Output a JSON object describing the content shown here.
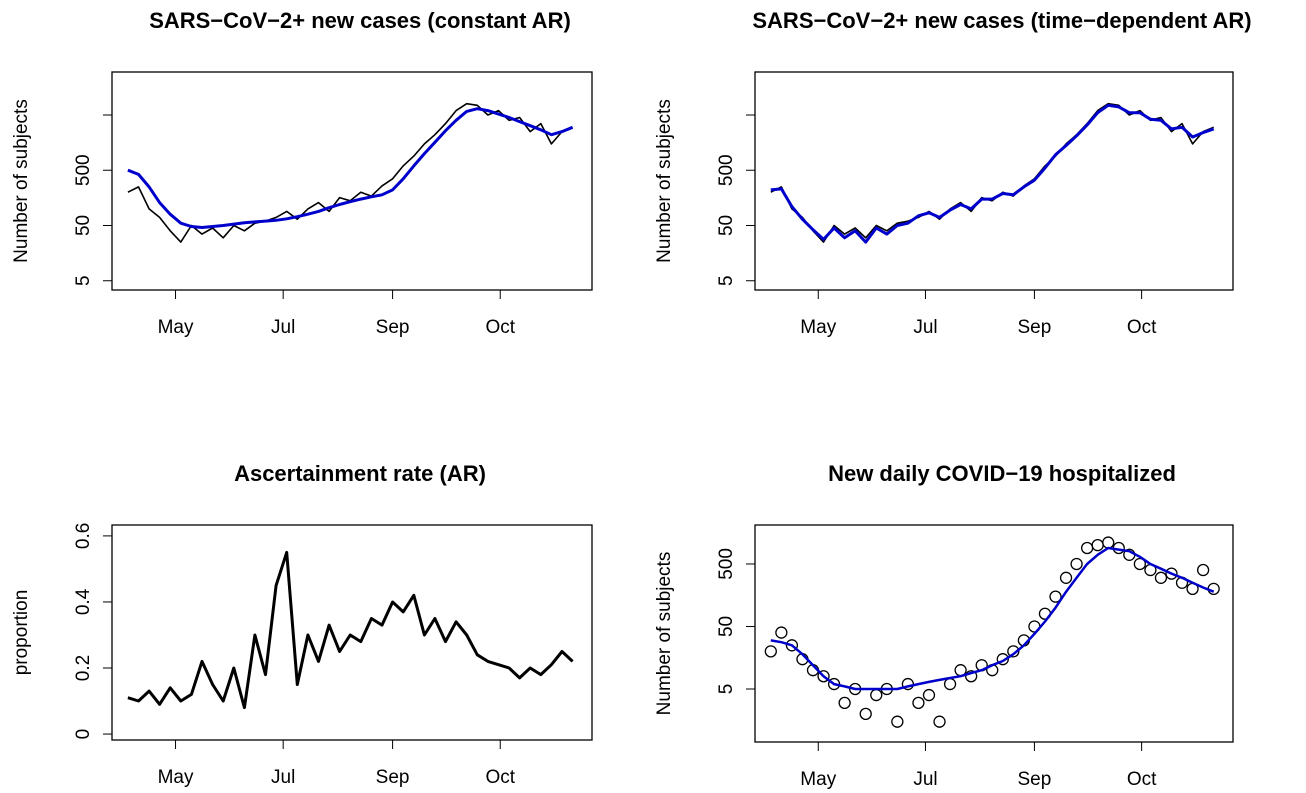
{
  "chart_data": [
    {
      "type": "line",
      "title": "SARS−CoV−2+ new cases (constant AR)",
      "y_label": "Number of subjects",
      "log_y": true,
      "x": [
        94,
        100,
        106,
        112,
        118,
        124,
        130,
        136,
        142,
        148,
        154,
        160,
        166,
        172,
        178,
        184,
        190,
        196,
        202,
        208,
        214,
        220,
        226,
        232,
        238,
        244,
        250,
        256,
        262,
        268,
        274,
        280,
        286,
        292,
        298,
        304,
        310,
        316,
        322,
        328,
        334,
        340,
        346
      ],
      "xlim": [
        85,
        357
      ],
      "xticks": [
        {
          "value": 121,
          "label": "May"
        },
        {
          "value": 182,
          "label": "Jul"
        },
        {
          "value": 244,
          "label": "Sep"
        },
        {
          "value": 305,
          "label": "Oct"
        }
      ],
      "ylim": [
        3.4,
        30000
      ],
      "yticks": [
        5,
        50,
        500,
        {
          "value": 5000,
          "label": null
        }
      ],
      "series": [
        {
          "color": "#000000",
          "width": 1.6,
          "values": [
            200,
            250,
            100,
            70,
            40,
            25,
            50,
            35,
            45,
            30,
            50,
            40,
            55,
            60,
            70,
            90,
            65,
            100,
            130,
            90,
            160,
            140,
            200,
            170,
            260,
            350,
            600,
            900,
            1500,
            2200,
            3500,
            6000,
            8000,
            7500,
            5000,
            6000,
            4000,
            4500,
            2500,
            3500,
            1500,
            2500,
            3000
          ]
        },
        {
          "color": "#0000cc",
          "width": 3,
          "values": [
            500,
            420,
            250,
            130,
            80,
            55,
            48,
            46,
            48,
            50,
            53,
            56,
            58,
            60,
            62,
            66,
            72,
            80,
            90,
            105,
            120,
            135,
            150,
            165,
            180,
            220,
            350,
            600,
            1000,
            1600,
            2600,
            4000,
            5800,
            6500,
            6000,
            5200,
            4500,
            3800,
            3200,
            2700,
            2200,
            2500,
            3000
          ]
        }
      ]
    },
    {
      "type": "line",
      "title": "SARS−CoV−2+ new cases (time−dependent AR)",
      "y_label": "Number of subjects",
      "log_y": true,
      "x": [
        94,
        100,
        106,
        112,
        118,
        124,
        130,
        136,
        142,
        148,
        154,
        160,
        166,
        172,
        178,
        184,
        190,
        196,
        202,
        208,
        214,
        220,
        226,
        232,
        238,
        244,
        250,
        256,
        262,
        268,
        274,
        280,
        286,
        292,
        298,
        304,
        310,
        316,
        322,
        328,
        334,
        340,
        346
      ],
      "xlim": [
        85,
        357
      ],
      "xticks": [
        {
          "value": 121,
          "label": "May"
        },
        {
          "value": 182,
          "label": "Jul"
        },
        {
          "value": 244,
          "label": "Sep"
        },
        {
          "value": 305,
          "label": "Oct"
        }
      ],
      "ylim": [
        3.4,
        30000
      ],
      "yticks": [
        5,
        50,
        500,
        {
          "value": 5000,
          "label": null
        }
      ],
      "series": [
        {
          "color": "#000000",
          "width": 1.6,
          "values": [
            200,
            250,
            100,
            70,
            40,
            25,
            50,
            35,
            45,
            30,
            50,
            40,
            55,
            60,
            70,
            90,
            65,
            100,
            130,
            90,
            160,
            140,
            200,
            170,
            260,
            350,
            600,
            900,
            1500,
            2200,
            3500,
            6000,
            8000,
            7500,
            5000,
            6000,
            4000,
            4500,
            2500,
            3500,
            1500,
            2500,
            3000
          ]
        },
        {
          "color": "#0000cc",
          "width": 3,
          "values": [
            220,
            230,
            110,
            65,
            42,
            28,
            45,
            30,
            40,
            25,
            45,
            35,
            50,
            55,
            75,
            85,
            70,
            95,
            120,
            100,
            150,
            150,
            190,
            180,
            250,
            330,
            550,
            950,
            1400,
            2100,
            3300,
            5500,
            7500,
            7000,
            5500,
            5500,
            4200,
            4000,
            2800,
            3000,
            2000,
            2400,
            2800
          ]
        }
      ]
    },
    {
      "type": "line",
      "title": "Ascertainment rate (AR)",
      "y_label": "proportion",
      "log_y": false,
      "x": [
        94,
        100,
        106,
        112,
        118,
        124,
        130,
        136,
        142,
        148,
        154,
        160,
        166,
        172,
        178,
        184,
        190,
        196,
        202,
        208,
        214,
        220,
        226,
        232,
        238,
        244,
        250,
        256,
        262,
        268,
        274,
        280,
        286,
        292,
        298,
        304,
        310,
        316,
        322,
        328,
        334,
        340,
        346
      ],
      "xlim": [
        85,
        357
      ],
      "xticks": [
        {
          "value": 121,
          "label": "May"
        },
        {
          "value": 182,
          "label": "Jul"
        },
        {
          "value": 244,
          "label": "Sep"
        },
        {
          "value": 305,
          "label": "Oct"
        }
      ],
      "ylim": [
        -0.018,
        0.633
      ],
      "yticks": [
        0,
        0.2,
        0.4,
        0.6
      ],
      "series": [
        {
          "color": "#000000",
          "width": 3,
          "values": [
            0.11,
            0.1,
            0.13,
            0.09,
            0.14,
            0.1,
            0.12,
            0.22,
            0.15,
            0.1,
            0.2,
            0.08,
            0.3,
            0.18,
            0.45,
            0.55,
            0.15,
            0.3,
            0.22,
            0.33,
            0.25,
            0.3,
            0.28,
            0.35,
            0.33,
            0.4,
            0.37,
            0.42,
            0.3,
            0.35,
            0.28,
            0.34,
            0.3,
            0.24,
            0.22,
            0.21,
            0.2,
            0.17,
            0.2,
            0.18,
            0.21,
            0.25,
            0.22
          ]
        }
      ]
    },
    {
      "type": "scatter",
      "title": "New daily COVID−19 hospitalized",
      "y_label": "Number of subjects",
      "log_y": true,
      "x": [
        94,
        100,
        106,
        112,
        118,
        124,
        130,
        136,
        142,
        148,
        154,
        160,
        166,
        172,
        178,
        184,
        190,
        196,
        202,
        208,
        214,
        220,
        226,
        232,
        238,
        244,
        250,
        256,
        262,
        268,
        274,
        280,
        286,
        292,
        298,
        304,
        310,
        316,
        322,
        328,
        334,
        340,
        346
      ],
      "xlim": [
        85,
        357
      ],
      "xticks": [
        {
          "value": 121,
          "label": "May"
        },
        {
          "value": 182,
          "label": "Jul"
        },
        {
          "value": 244,
          "label": "Sep"
        },
        {
          "value": 305,
          "label": "Oct"
        }
      ],
      "ylim": [
        0.71,
        2100
      ],
      "yticks": [
        5,
        50,
        500
      ],
      "series": [
        {
          "color": "#000000",
          "mark": "points",
          "values": [
            20,
            40,
            25,
            15,
            10,
            8,
            6,
            3,
            5,
            2,
            4,
            5,
            1.5,
            6,
            3,
            4,
            1.5,
            6,
            10,
            8,
            12,
            10,
            15,
            20,
            30,
            50,
            80,
            150,
            300,
            500,
            900,
            1000,
            1100,
            900,
            700,
            500,
            400,
            300,
            350,
            250,
            200,
            400,
            200
          ]
        },
        {
          "color": "#0000cc",
          "mark": "line",
          "width": 2.5,
          "values": [
            30,
            28,
            25,
            18,
            12,
            8,
            6,
            5.5,
            5,
            5,
            5,
            5,
            5,
            5.5,
            6,
            6.5,
            7,
            7.5,
            8,
            9,
            10,
            12,
            14,
            18,
            25,
            38,
            60,
            100,
            180,
            300,
            500,
            700,
            900,
            850,
            800,
            650,
            500,
            420,
            350,
            300,
            250,
            210,
            180
          ]
        }
      ]
    }
  ]
}
